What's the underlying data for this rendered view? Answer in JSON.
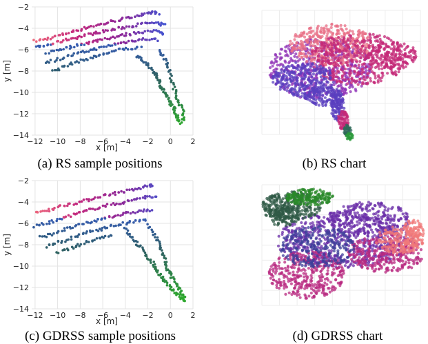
{
  "captions": {
    "a": "(a) RS sample positions",
    "b": "(b) RS chart",
    "c": "(c) GDRSS sample positions",
    "d": "(d) GDRSS chart"
  },
  "chart_data": [
    {
      "id": "a",
      "type": "scatter",
      "title": "",
      "xlabel": "x [m]",
      "ylabel": "y [m]",
      "xlim": [
        -12.3,
        2
      ],
      "ylim": [
        -14,
        -2
      ],
      "xticks": [
        -12,
        -10,
        -8,
        -6,
        -4,
        -2,
        0,
        2
      ],
      "yticks": [
        -2,
        -4,
        -6,
        -8,
        -10,
        -12,
        -14
      ],
      "grid": true,
      "color_encoding": "along-track gradient: pink/red (west) -> purple/magenta -> blue (north-east corner) -> dark teal -> green (south)",
      "colors": [
        "#f06d7e",
        "#c2287e",
        "#8a2a9c",
        "#3a5ad8",
        "#2e5f62",
        "#2ea82e"
      ],
      "series": [
        {
          "points": [
            [
              -12,
              -5.2
            ],
            [
              -11,
              -5
            ],
            [
              -10,
              -4.7
            ],
            [
              -9,
              -4.4
            ],
            [
              -8,
              -4.1
            ],
            [
              -7,
              -3.8
            ],
            [
              -6,
              -3.6
            ],
            [
              -5,
              -3.3
            ],
            [
              -4,
              -3.1
            ],
            [
              -3,
              -2.8
            ],
            [
              -2,
              -2.7
            ],
            [
              -1.5,
              -2.5
            ],
            [
              -1,
              -2.6
            ]
          ]
        },
        {
          "points": [
            [
              -12,
              -5.8
            ],
            [
              -11,
              -5.6
            ],
            [
              -10,
              -5.3
            ],
            [
              -9,
              -5
            ],
            [
              -8,
              -4.8
            ],
            [
              -7,
              -4.5
            ],
            [
              -6,
              -4.3
            ],
            [
              -5,
              -4.1
            ],
            [
              -4,
              -3.9
            ],
            [
              -3,
              -3.7
            ],
            [
              -2,
              -3.5
            ],
            [
              -1,
              -3.6
            ],
            [
              -0.5,
              -3.7
            ]
          ]
        },
        {
          "points": [
            [
              -11,
              -6.3
            ],
            [
              -10,
              -6
            ],
            [
              -9,
              -5.8
            ],
            [
              -8,
              -5.5
            ],
            [
              -7,
              -5.3
            ],
            [
              -6,
              -5
            ],
            [
              -5,
              -4.8
            ],
            [
              -4,
              -4.6
            ],
            [
              -3,
              -4.4
            ],
            [
              -2,
              -4.3
            ],
            [
              -1,
              -4.3
            ],
            [
              -0.5,
              -4.5
            ]
          ]
        },
        {
          "points": [
            [
              -11,
              -7.2
            ],
            [
              -10,
              -6.9
            ],
            [
              -9,
              -6.6
            ],
            [
              -8,
              -6.3
            ],
            [
              -7,
              -6
            ],
            [
              -6,
              -5.8
            ],
            [
              -5,
              -5.5
            ],
            [
              -4,
              -5.3
            ],
            [
              -3,
              -5.1
            ],
            [
              -2,
              -5
            ],
            [
              -1,
              -5.1
            ]
          ]
        },
        {
          "points": [
            [
              -10.5,
              -8
            ],
            [
              -9.5,
              -7.6
            ],
            [
              -8.5,
              -7.2
            ],
            [
              -7.5,
              -6.9
            ],
            [
              -6.5,
              -6.6
            ],
            [
              -5.5,
              -6.3
            ],
            [
              -4.5,
              -6
            ],
            [
              -3.5,
              -5.9
            ],
            [
              -2.5,
              -5.8
            ]
          ]
        },
        {
          "points": [
            [
              -3,
              -6.5
            ],
            [
              -2.5,
              -7
            ],
            [
              -2,
              -7.5
            ],
            [
              -1.5,
              -8
            ],
            [
              -1.2,
              -8.5
            ],
            [
              -1,
              -9
            ],
            [
              -0.8,
              -9.5
            ],
            [
              -0.5,
              -10
            ],
            [
              -0.3,
              -10.5
            ],
            [
              0,
              -11
            ],
            [
              0.3,
              -11.5
            ],
            [
              0.5,
              -12
            ],
            [
              0.7,
              -12.5
            ],
            [
              1,
              -13
            ]
          ]
        },
        {
          "points": [
            [
              -1,
              -6
            ],
            [
              -0.5,
              -6.8
            ],
            [
              -0.2,
              -7.5
            ],
            [
              0,
              -8.5
            ],
            [
              0.3,
              -9.5
            ],
            [
              0.6,
              -10.5
            ],
            [
              0.9,
              -11.2
            ],
            [
              1.2,
              -12
            ],
            [
              1.1,
              -12.8
            ]
          ]
        }
      ]
    },
    {
      "id": "b",
      "type": "scatter",
      "title": "",
      "grid": true,
      "axes_labels_shown": false,
      "description_colors": [
        "#e86f86",
        "#c42a78",
        "#8e2fb5",
        "#5a3fbf",
        "#2f6a5a",
        "#2a9a3a"
      ],
      "shape": "broad cloud (pink/magenta upper body, purple lower-left) with a narrow stem running down-right to a green tip"
    },
    {
      "id": "c",
      "type": "scatter",
      "title": "",
      "xlabel": "x [m]",
      "ylabel": "y [m]",
      "xlim": [
        -12.3,
        2
      ],
      "ylim": [
        -14,
        -2
      ],
      "xticks": [
        -12,
        -10,
        -8,
        -6,
        -4,
        -2,
        0,
        2
      ],
      "yticks": [
        -2,
        -4,
        -6,
        -8,
        -10,
        -12,
        -14
      ],
      "grid": true,
      "color_encoding": "along-track gradient: pink/red (west) -> purple -> blue (north-east corner) -> dark teal -> green (south)",
      "colors": [
        "#f06d7e",
        "#c2287e",
        "#8a2a9c",
        "#3a5ad8",
        "#2e5f62",
        "#2ea82e"
      ],
      "series": [
        {
          "points": [
            [
              -12,
              -5
            ],
            [
              -11,
              -4.8
            ],
            [
              -10,
              -4.5
            ],
            [
              -9,
              -4.2
            ],
            [
              -8,
              -4
            ],
            [
              -7,
              -3.7
            ],
            [
              -6,
              -3.4
            ],
            [
              -5,
              -3.2
            ],
            [
              -4,
              -3
            ],
            [
              -3,
              -2.8
            ],
            [
              -2,
              -2.5
            ],
            [
              -1.5,
              -2.4
            ]
          ]
        },
        {
          "points": [
            [
              -12,
              -6.3
            ],
            [
              -11,
              -6
            ],
            [
              -10,
              -5.7
            ],
            [
              -9,
              -5.3
            ],
            [
              -8,
              -5
            ],
            [
              -7,
              -4.7
            ],
            [
              -6,
              -4.4
            ],
            [
              -5,
              -4.2
            ],
            [
              -4,
              -4
            ],
            [
              -3,
              -3.7
            ],
            [
              -2,
              -3.5
            ],
            [
              -1,
              -3.6
            ]
          ]
        },
        {
          "points": [
            [
              -11.5,
              -7.3
            ],
            [
              -10.5,
              -7
            ],
            [
              -9.5,
              -6.6
            ],
            [
              -8.5,
              -6.3
            ],
            [
              -7.5,
              -6
            ],
            [
              -6.5,
              -5.7
            ],
            [
              -5.5,
              -5.4
            ],
            [
              -4.5,
              -5.2
            ],
            [
              -3.5,
              -5
            ],
            [
              -2.5,
              -4.8
            ],
            [
              -1.5,
              -4.8
            ]
          ]
        },
        {
          "points": [
            [
              -11,
              -8.2
            ],
            [
              -10,
              -7.8
            ],
            [
              -9,
              -7.5
            ],
            [
              -8,
              -7.1
            ],
            [
              -7,
              -6.7
            ],
            [
              -6,
              -6.5
            ],
            [
              -5,
              -6.2
            ],
            [
              -4,
              -6
            ],
            [
              -3,
              -5.8
            ],
            [
              -2,
              -5.7
            ]
          ]
        },
        {
          "points": [
            [
              -10,
              -8.7
            ],
            [
              -9,
              -8.4
            ],
            [
              -8,
              -8
            ],
            [
              -7,
              -7.6
            ],
            [
              -6,
              -7.3
            ],
            [
              -5,
              -7
            ]
          ]
        },
        {
          "points": [
            [
              -4,
              -6.5
            ],
            [
              -3.5,
              -7.2
            ],
            [
              -3,
              -7.8
            ],
            [
              -2.5,
              -8.5
            ],
            [
              -2,
              -9.2
            ],
            [
              -1.5,
              -9.8
            ],
            [
              -1.2,
              -10.4
            ],
            [
              -0.8,
              -11
            ],
            [
              -0.5,
              -11.5
            ],
            [
              0,
              -12
            ],
            [
              0.5,
              -12.5
            ],
            [
              1,
              -13
            ],
            [
              1.3,
              -13.3
            ]
          ]
        },
        {
          "points": [
            [
              -2,
              -6.2
            ],
            [
              -1.5,
              -7
            ],
            [
              -1,
              -7.8
            ],
            [
              -0.8,
              -8.6
            ],
            [
              -0.5,
              -9.4
            ],
            [
              -0.3,
              -10.2
            ],
            [
              0,
              -10.8
            ],
            [
              0.3,
              -11.4
            ],
            [
              0.7,
              -12
            ],
            [
              1,
              -12.5
            ],
            [
              1.3,
              -13
            ]
          ]
        }
      ]
    },
    {
      "id": "d",
      "type": "scatter",
      "title": "",
      "grid": true,
      "axes_labels_shown": false,
      "description_colors": [
        "#2a8a2a",
        "#2f5a45",
        "#3d3f9a",
        "#6a2ea8",
        "#b82a80",
        "#f07a7a"
      ],
      "shape": "wide cloud: green/dark cluster at upper-left, purple body, pink/salmon wing at right, magenta lobe at lower-left"
    }
  ]
}
